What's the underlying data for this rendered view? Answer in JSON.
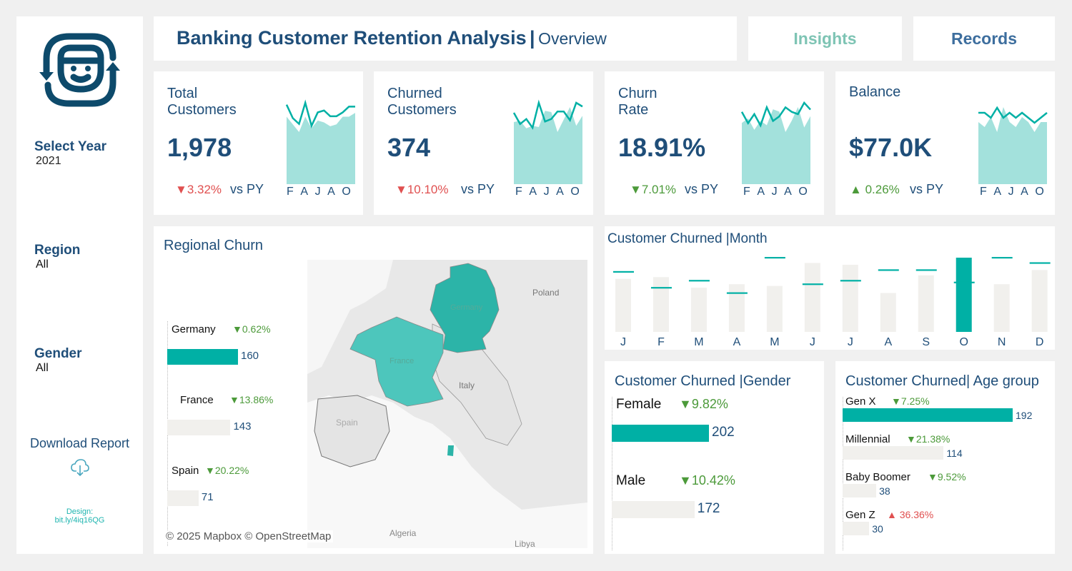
{
  "sidebar": {
    "logo_icon": "customer-retention-icon",
    "filters": [
      {
        "label": "Select Year",
        "value": "2021"
      },
      {
        "label": "Region",
        "value": "All"
      },
      {
        "label": "Gender",
        "value": "All"
      }
    ],
    "download_label": "Download Report",
    "download_icon": "cloud-download-icon",
    "design_label": "Design:",
    "design_link": "bit.ly/4iq16QG"
  },
  "header": {
    "title": "Banking Customer Retention Analysis",
    "separator": "|",
    "subtitle": "Overview"
  },
  "nav": {
    "insights": "Insights",
    "records": "Records"
  },
  "kpis": [
    {
      "title": "Total Customers",
      "value": "1,978",
      "direction": "down",
      "delta": "3.32%",
      "vs": "vs PY",
      "months": "F A J A O",
      "spark_cy": [
        70,
        66,
        62,
        70,
        64,
        68,
        67,
        65,
        66,
        70,
        70,
        72
      ],
      "spark_py": [
        74,
        67,
        64,
        75,
        63,
        70,
        71,
        68,
        68,
        70,
        73,
        73
      ]
    },
    {
      "title": "Churned Customers",
      "value": "374",
      "direction": "down",
      "delta": "10.10%",
      "vs": "vs PY",
      "months": "F A J A O",
      "spark_cy": [
        30,
        31,
        25,
        27,
        26,
        39,
        38,
        22,
        32,
        42,
        27,
        35
      ],
      "spark_py": [
        34,
        25,
        29,
        22,
        42,
        27,
        29,
        35,
        35,
        28,
        42,
        39
      ]
    },
    {
      "title": "Churn Rate",
      "value": "18.91%",
      "direction": "down",
      "delta": "7.01%",
      "vs": "vs PY",
      "months": "F A J A O",
      "spark_cy": [
        18,
        20,
        15,
        19,
        17,
        24,
        23,
        14,
        19,
        25,
        16,
        21
      ],
      "spark_py": [
        21,
        16,
        20,
        15,
        23,
        17,
        19,
        23,
        21,
        20,
        25,
        22
      ]
    },
    {
      "title": "Balance",
      "value": "$77.0K",
      "direction": "up",
      "delta": "0.26%",
      "vs": "vs PY",
      "months": "F A J A O",
      "spark_cy": [
        77,
        76,
        78,
        75,
        80,
        77,
        76,
        78,
        77,
        75,
        77,
        77
      ],
      "spark_py": [
        78,
        78,
        77,
        79,
        77,
        78,
        77,
        78,
        77,
        76,
        77,
        78
      ]
    }
  ],
  "regional": {
    "title": "Regional Churn",
    "rows": [
      {
        "country": "Germany",
        "direction": "down",
        "delta": "0.62%",
        "value": 160,
        "highlight": true
      },
      {
        "country": "France",
        "direction": "down",
        "delta": "13.86%",
        "value": 143,
        "highlight": false
      },
      {
        "country": "Spain",
        "direction": "down",
        "delta": "20.22%",
        "value": 71,
        "highlight": false
      }
    ],
    "map_labels": [
      "Poland",
      "Germany",
      "France",
      "Italy",
      "Spain",
      "Algeria",
      "Libya"
    ],
    "attribution": "© 2025 Mapbox © OpenStreetMap"
  },
  "monthly": {
    "title": "Customer Churned |Month",
    "chart_data": {
      "type": "bar",
      "categories": [
        "J",
        "F",
        "M",
        "A",
        "M",
        "J",
        "J",
        "A",
        "S",
        "O",
        "N",
        "D"
      ],
      "series": [
        {
          "values": [
            30,
            31,
            25,
            27,
            26,
            39,
            38,
            22,
            32,
            42,
            27,
            35
          ]
        },
        {
          "values": [
            34,
            25,
            29,
            22,
            42,
            27,
            29,
            35,
            35,
            28,
            42,
            39
          ]
        }
      ],
      "highlight": "O"
    }
  },
  "gender": {
    "title": "Customer Churned |Gender",
    "rows": [
      {
        "label": "Female",
        "direction": "down",
        "delta": "9.82%",
        "value": 202,
        "highlight": true
      },
      {
        "label": "Male",
        "direction": "down",
        "delta": "10.42%",
        "value": 172,
        "highlight": false
      }
    ]
  },
  "age": {
    "title": "Customer Churned| Age group",
    "rows": [
      {
        "label": "Gen X",
        "direction": "down",
        "delta": "7.25%",
        "value": 192,
        "highlight": true
      },
      {
        "label": "Millennial",
        "direction": "down",
        "delta": "21.38%",
        "value": 114,
        "highlight": false
      },
      {
        "label": "Baby Boomer",
        "direction": "down",
        "delta": "9.52%",
        "value": 38,
        "highlight": false
      },
      {
        "label": "Gen Z",
        "direction": "up",
        "delta": "36.36%",
        "value": 30,
        "highlight": false
      }
    ]
  },
  "colors": {
    "navy": "#1f4e79",
    "teal": "#00b0a5",
    "light_teal": "#a3e1dc",
    "gray_bar": "#f1f0ed",
    "down": "#4c9a3a",
    "up": "#e05050"
  }
}
